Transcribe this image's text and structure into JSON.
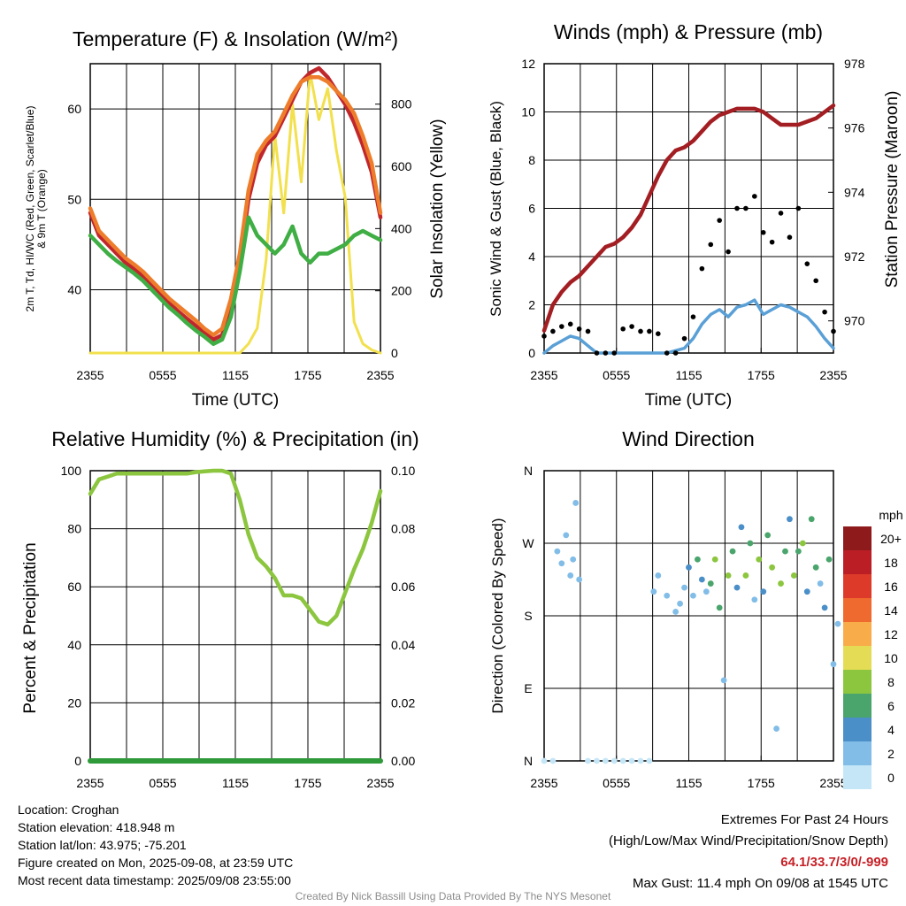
{
  "chart_data": [
    {
      "type": "line",
      "title": "Temperature (F) & Insolation (W/m²)",
      "xlabel": "Time (UTC)",
      "ylabel": "2m T, Td, HI/WC (Red, Green, Scarlet/Blue) & 9m T (Orange)",
      "y2label": "Solar Insolation (Yellow)",
      "x_ticks": [
        "2355",
        "0555",
        "1155",
        "1755",
        "2355"
      ],
      "ylim": [
        33,
        65
      ],
      "y_ticks": [
        40,
        50,
        60
      ],
      "y2lim": [
        0,
        930
      ],
      "y2_ticks": [
        0,
        200,
        400,
        600,
        800
      ],
      "grid": true,
      "series": [
        {
          "name": "2m T",
          "color": "#c0272d",
          "axis": "left",
          "values": [
            48.5,
            46,
            45,
            44,
            43,
            42.3,
            41.5,
            40.5,
            39.5,
            38.5,
            37.6,
            36.8,
            36,
            35.2,
            34.5,
            35,
            38,
            43,
            50,
            54,
            56,
            57,
            59,
            61,
            63,
            64,
            64.5,
            63.5,
            62,
            60.5,
            58.5,
            56,
            53,
            48
          ]
        },
        {
          "name": "9m T",
          "color": "#ee7d2b",
          "axis": "left",
          "values": [
            49,
            46.5,
            45.5,
            44.5,
            43.5,
            42.8,
            42,
            41,
            40,
            39,
            38.2,
            37.4,
            36.6,
            35.7,
            35,
            35.7,
            39,
            44,
            51,
            55,
            56.5,
            57.5,
            59.5,
            61.5,
            63,
            63.5,
            63.5,
            63,
            62,
            61,
            59.5,
            57,
            54,
            48.5
          ]
        },
        {
          "name": "Td",
          "color": "#3fae44",
          "axis": "left",
          "values": [
            46,
            45,
            44,
            43.2,
            42.5,
            41.8,
            41,
            40,
            39,
            38,
            37.2,
            36.3,
            35.5,
            34.8,
            34,
            34.5,
            37,
            42,
            48,
            46,
            45,
            44,
            45,
            47,
            44,
            43,
            44,
            44,
            44.5,
            45,
            46,
            46.5,
            46,
            45.5
          ]
        },
        {
          "name": "Insolation",
          "color": "#f2e04d",
          "axis": "right",
          "values": [
            0,
            0,
            0,
            0,
            0,
            0,
            0,
            0,
            0,
            0,
            0,
            0,
            0,
            0,
            0,
            0,
            0,
            0,
            30,
            80,
            300,
            700,
            450,
            800,
            550,
            900,
            750,
            850,
            650,
            500,
            100,
            30,
            10,
            0
          ]
        }
      ]
    },
    {
      "type": "line",
      "title": "Winds (mph) & Pressure (mb)",
      "xlabel": "Time (UTC)",
      "ylabel": "Sonic Wind & Gust (Blue, Black)",
      "y2label": "Station Pressure (Maroon)",
      "x_ticks": [
        "2355",
        "0555",
        "1155",
        "1755",
        "2355"
      ],
      "ylim": [
        0,
        12
      ],
      "y_ticks": [
        0,
        2,
        4,
        6,
        8,
        10,
        12
      ],
      "y2lim": [
        969,
        978
      ],
      "y2_ticks": [
        970,
        972,
        974,
        976,
        978
      ],
      "grid": true,
      "series": [
        {
          "name": "Station Pressure",
          "color": "#a31e22",
          "axis": "right",
          "values": [
            969.7,
            970.5,
            970.9,
            971.2,
            971.4,
            971.7,
            972,
            972.3,
            972.4,
            972.6,
            972.9,
            973.3,
            973.9,
            974.5,
            975,
            975.3,
            975.4,
            975.6,
            975.9,
            976.2,
            976.4,
            976.5,
            976.6,
            976.6,
            976.6,
            976.5,
            976.3,
            976.1,
            976.1,
            976.1,
            976.2,
            976.3,
            976.5,
            976.7
          ]
        },
        {
          "name": "Sonic Wind",
          "color": "#5aa0d6",
          "axis": "left",
          "values": [
            0,
            0.3,
            0.5,
            0.7,
            0.6,
            0.3,
            0,
            0,
            0,
            0,
            0,
            0,
            0,
            0,
            0,
            0.1,
            0.2,
            0.6,
            1.2,
            1.6,
            1.8,
            1.5,
            1.9,
            2,
            2.2,
            1.6,
            1.8,
            2,
            1.9,
            1.7,
            1.5,
            1.1,
            0.6,
            0.2
          ]
        },
        {
          "name": "Gust",
          "color": "#000000",
          "axis": "left",
          "style": "dots",
          "values": [
            0.7,
            0.9,
            1.1,
            1.2,
            1,
            0.9,
            0,
            0,
            0,
            1,
            1.1,
            0.9,
            0.9,
            0.8,
            0,
            0,
            0.6,
            1.5,
            3.5,
            4.5,
            5.5,
            4.2,
            6,
            6,
            6.5,
            5,
            4.6,
            5.8,
            4.8,
            6,
            3.7,
            3,
            1.7,
            0.9
          ]
        }
      ]
    },
    {
      "type": "line",
      "title": "Relative Humidity (%) & Precipitation (in)",
      "xlabel": "",
      "ylabel": "Percent & Precipitation",
      "x_ticks": [
        "2355",
        "0555",
        "1155",
        "1755",
        "2355"
      ],
      "ylim": [
        0,
        100
      ],
      "y_ticks": [
        0,
        20,
        40,
        60,
        80,
        100
      ],
      "y2lim": [
        0,
        0.1
      ],
      "y2_ticks": [
        "0.00",
        "0.02",
        "0.04",
        "0.06",
        "0.08",
        "0.10"
      ],
      "grid": true,
      "series": [
        {
          "name": "Relative Humidity",
          "color": "#8cc63f",
          "axis": "left",
          "values": [
            92,
            97,
            98,
            99,
            99,
            99,
            99,
            99,
            99,
            99,
            99,
            99,
            99.5,
            99.8,
            100,
            100,
            99,
            90,
            78,
            70,
            67,
            63,
            57,
            57,
            56,
            52,
            48,
            47,
            50,
            58,
            66,
            73,
            82,
            93
          ]
        },
        {
          "name": "Precipitation",
          "color": "#2e9a3a",
          "axis": "right",
          "values": [
            0,
            0,
            0,
            0,
            0,
            0,
            0,
            0,
            0,
            0,
            0,
            0,
            0,
            0,
            0,
            0,
            0,
            0,
            0,
            0,
            0,
            0,
            0,
            0,
            0,
            0,
            0,
            0,
            0,
            0,
            0,
            0,
            0,
            0
          ]
        }
      ]
    },
    {
      "type": "scatter",
      "title": "Wind Direction",
      "xlabel": "",
      "ylabel": "Direction (Colored By Speed)",
      "x_ticks": [
        "2355",
        "0555",
        "1155",
        "1755",
        "2355"
      ],
      "y_ticks": [
        "N",
        "E",
        "S",
        "W",
        "N"
      ],
      "ylim": [
        0,
        360
      ],
      "grid": true,
      "colorbar": {
        "unit": "mph",
        "labels": [
          "0",
          "2",
          "4",
          "6",
          "8",
          "10",
          "12",
          "14",
          "16",
          "18",
          "20+"
        ],
        "colors": [
          "#c4e6f7",
          "#82bde8",
          "#4b8fc8",
          "#4aa56c",
          "#8cc63f",
          "#e4dc55",
          "#f8ac4a",
          "#ef6a2e",
          "#de3a2a",
          "#bb1f25",
          "#8e1a1c"
        ]
      },
      "points_x": [
        0,
        1,
        1.5,
        2,
        2.5,
        3,
        3.3,
        3.6,
        4,
        5,
        6,
        7,
        8,
        9,
        10,
        11,
        12,
        12.5,
        13,
        14,
        15,
        15.5,
        16,
        16.5,
        17,
        17.5,
        18,
        18.5,
        19,
        19.5,
        20,
        20.5,
        21,
        21.5,
        22,
        22.5,
        23,
        23.5,
        24,
        24.5,
        25,
        25.5,
        26,
        26.5,
        27,
        27.5,
        28,
        28.5,
        29,
        29.5,
        30,
        30.5,
        31,
        31.5,
        32,
        32.5,
        33,
        33.5
      ],
      "points_dir": [
        0,
        0,
        260,
        245,
        280,
        230,
        250,
        320,
        225,
        0,
        0,
        0,
        0,
        0,
        0,
        0,
        0,
        210,
        230,
        205,
        185,
        195,
        215,
        240,
        205,
        250,
        225,
        210,
        220,
        250,
        190,
        100,
        230,
        260,
        215,
        290,
        230,
        270,
        200,
        250,
        210,
        280,
        240,
        40,
        220,
        260,
        300,
        230,
        260,
        270,
        210,
        300,
        240,
        220,
        190,
        250,
        120,
        170
      ],
      "points_speed": [
        0,
        0,
        1,
        1,
        1,
        1,
        1,
        1,
        1,
        0,
        0,
        0,
        0,
        0,
        0,
        0,
        0,
        1,
        1,
        1,
        1,
        1,
        1,
        2,
        1,
        3,
        2,
        1,
        3,
        4,
        3,
        1,
        4,
        3,
        2,
        2,
        4,
        3,
        1,
        4,
        2,
        3,
        4,
        1,
        4,
        3,
        2,
        4,
        3,
        4,
        2,
        3,
        3,
        1,
        2,
        3,
        1,
        1
      ]
    }
  ],
  "info": {
    "location": "Location: Croghan",
    "elevation": "Station elevation: 418.948 m",
    "latlon": "Station lat/lon: 43.975; -75.201",
    "created": "Figure created on Mon, 2025-09-08, at 23:59 UTC",
    "recent": "Most recent data timestamp: 2025/09/08 23:55:00"
  },
  "extremes": {
    "title": "Extremes For Past 24 Hours",
    "subtitle": "(High/Low/Max Wind/Precipitation/Snow Depth)",
    "values": "64.1/33.7/3/0/-999",
    "max_gust": "Max Gust: 11.4 mph On 09/08 at 1545 UTC"
  },
  "credit": "Created By Nick Bassill Using Data Provided By The NYS Mesonet"
}
